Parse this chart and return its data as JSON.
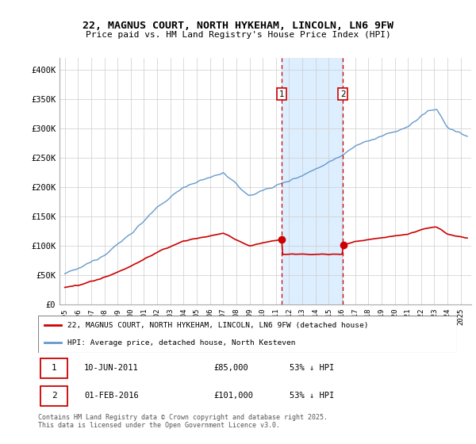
{
  "title_line1": "22, MAGNUS COURT, NORTH HYKEHAM, LINCOLN, LN6 9FW",
  "title_line2": "Price paid vs. HM Land Registry's House Price Index (HPI)",
  "ylim": [
    0,
    420000
  ],
  "yticks": [
    0,
    50000,
    100000,
    150000,
    200000,
    250000,
    300000,
    350000,
    400000
  ],
  "ytick_labels": [
    "£0",
    "£50K",
    "£100K",
    "£150K",
    "£200K",
    "£250K",
    "£300K",
    "£350K",
    "£400K"
  ],
  "red_color": "#cc0000",
  "blue_color": "#6699cc",
  "shade_color": "#ddeeff",
  "vline_color": "#cc0000",
  "grid_color": "#cccccc",
  "background_color": "#ffffff",
  "legend_label_red": "22, MAGNUS COURT, NORTH HYKEHAM, LINCOLN, LN6 9FW (detached house)",
  "legend_label_blue": "HPI: Average price, detached house, North Kesteven",
  "sale1_year": 2011.44,
  "sale2_year": 2016.08,
  "sale1_price": 85000,
  "sale2_price": 101000,
  "footer": "Contains HM Land Registry data © Crown copyright and database right 2025.\nThis data is licensed under the Open Government Licence v3.0."
}
